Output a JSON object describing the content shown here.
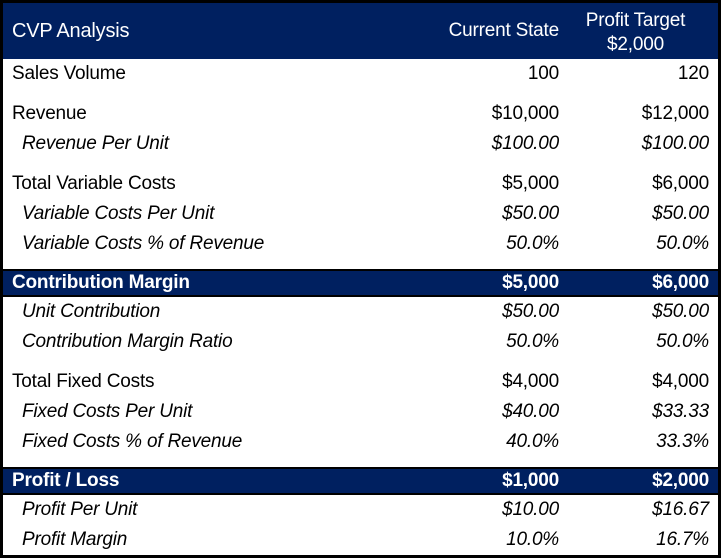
{
  "colors": {
    "band_background": "#002060",
    "band_text": "#FFFFFF",
    "border": "#000000",
    "text": "#000000",
    "background": "#FFFFFF"
  },
  "header": {
    "title": "CVP Analysis",
    "current_column_label": "Current State",
    "target_column_label_line1": "Profit Target",
    "target_column_label_line2": "$2,000"
  },
  "rows": [
    {
      "label": "Sales Volume",
      "current": "100",
      "target": "120",
      "type": "normal"
    },
    {
      "label": "Revenue",
      "current": "$10,000",
      "target": "$12,000",
      "type": "normal"
    },
    {
      "label": "Revenue Per Unit",
      "current": "$100.00",
      "target": "$100.00",
      "type": "sub"
    },
    {
      "label": "Total Variable Costs",
      "current": "$5,000",
      "target": "$6,000",
      "type": "normal"
    },
    {
      "label": "Variable Costs Per Unit",
      "current": "$50.00",
      "target": "$50.00",
      "type": "sub"
    },
    {
      "label": "Variable Costs % of Revenue",
      "current": "50.0%",
      "target": "50.0%",
      "type": "sub"
    },
    {
      "label": "Contribution Margin",
      "current": "$5,000",
      "target": "$6,000",
      "type": "band"
    },
    {
      "label": "Unit Contribution",
      "current": "$50.00",
      "target": "$50.00",
      "type": "sub"
    },
    {
      "label": "Contribution Margin Ratio",
      "current": "50.0%",
      "target": "50.0%",
      "type": "sub"
    },
    {
      "label": "Total Fixed Costs",
      "current": "$4,000",
      "target": "$4,000",
      "type": "normal"
    },
    {
      "label": "Fixed Costs Per Unit",
      "current": "$40.00",
      "target": "$33.33",
      "type": "sub"
    },
    {
      "label": "Fixed Costs % of Revenue",
      "current": "40.0%",
      "target": "33.3%",
      "type": "sub"
    },
    {
      "label": "Profit / Loss",
      "current": "$1,000",
      "target": "$2,000",
      "type": "band"
    },
    {
      "label": "Profit Per Unit",
      "current": "$10.00",
      "target": "$16.67",
      "type": "sub"
    },
    {
      "label": "Profit Margin",
      "current": "10.0%",
      "target": "16.7%",
      "type": "sub"
    }
  ]
}
